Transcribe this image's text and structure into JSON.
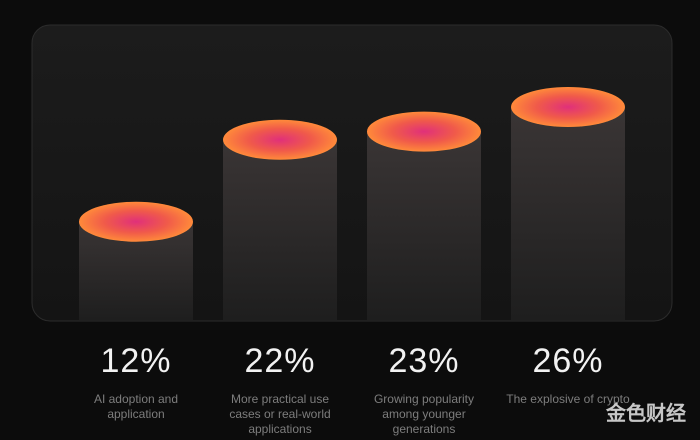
{
  "chart_data": {
    "type": "bar",
    "categories": [
      "AI adoption and application",
      "More practical use cases or real-world applications",
      "Growing popularity among younger generations",
      "The explosive of crypto"
    ],
    "values": [
      12,
      22,
      23,
      26
    ],
    "value_labels": [
      "12%",
      "22%",
      "23%",
      "26%"
    ],
    "watermark": "金色财经"
  }
}
